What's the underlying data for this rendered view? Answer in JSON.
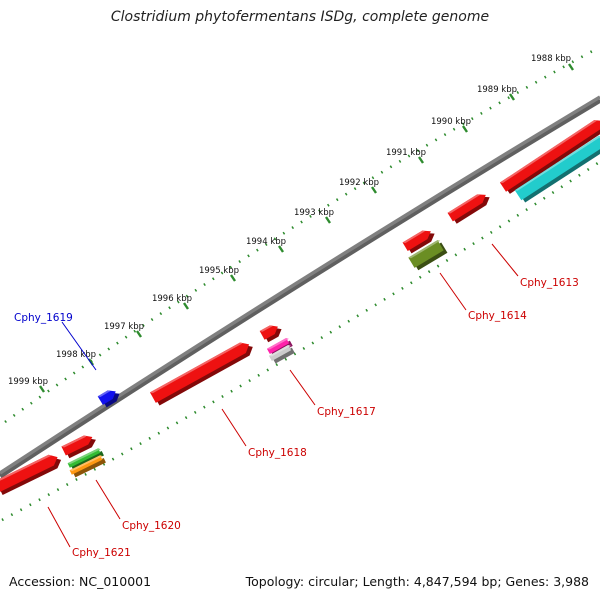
{
  "title": "Clostridium phytofermentans ISDg, complete genome",
  "footer": {
    "accession": "Accession: NC_010001",
    "summary": "Topology: circular; Length: 4,847,594 bp; Genes: 3,988"
  },
  "colors": {
    "backbone": "#808080",
    "track": "#2e8b2e",
    "label_default": "#cc0000",
    "label_highlight": "#0000cc"
  },
  "ticks": [
    {
      "label": "1988 kbp"
    },
    {
      "label": "1989 kbp"
    },
    {
      "label": "1990 kbp"
    },
    {
      "label": "1991 kbp"
    },
    {
      "label": "1992 kbp"
    },
    {
      "label": "1993 kbp"
    },
    {
      "label": "1994 kbp"
    },
    {
      "label": "1995 kbp"
    },
    {
      "label": "1996 kbp"
    },
    {
      "label": "1997 kbp"
    },
    {
      "label": "1998 kbp"
    },
    {
      "label": "1999 kbp"
    }
  ],
  "labels": [
    {
      "text": "Cphy_1613",
      "color": "#cc0000"
    },
    {
      "text": "Cphy_1614",
      "color": "#cc0000"
    },
    {
      "text": "Cphy_1617",
      "color": "#cc0000"
    },
    {
      "text": "Cphy_1618",
      "color": "#cc0000"
    },
    {
      "text": "Cphy_1619",
      "color": "#0000cc"
    },
    {
      "text": "Cphy_1620",
      "color": "#cc0000"
    },
    {
      "text": "Cphy_1621",
      "color": "#cc0000"
    }
  ],
  "genes": [
    {
      "color": "#ee1111"
    },
    {
      "color": "#ee1111"
    },
    {
      "color": "#ee1111"
    },
    {
      "color": "#ee1111"
    },
    {
      "color": "#ee1111"
    },
    {
      "color": "#ee1111"
    },
    {
      "color": "#ee1111"
    },
    {
      "color": "#1111ee"
    },
    {
      "color": "#22cccc"
    },
    {
      "color": "#6b8e23"
    },
    {
      "color": "#ff22aa"
    },
    {
      "color": "#cccccc"
    },
    {
      "color": "#33bb33"
    },
    {
      "color": "#ff9911"
    }
  ]
}
